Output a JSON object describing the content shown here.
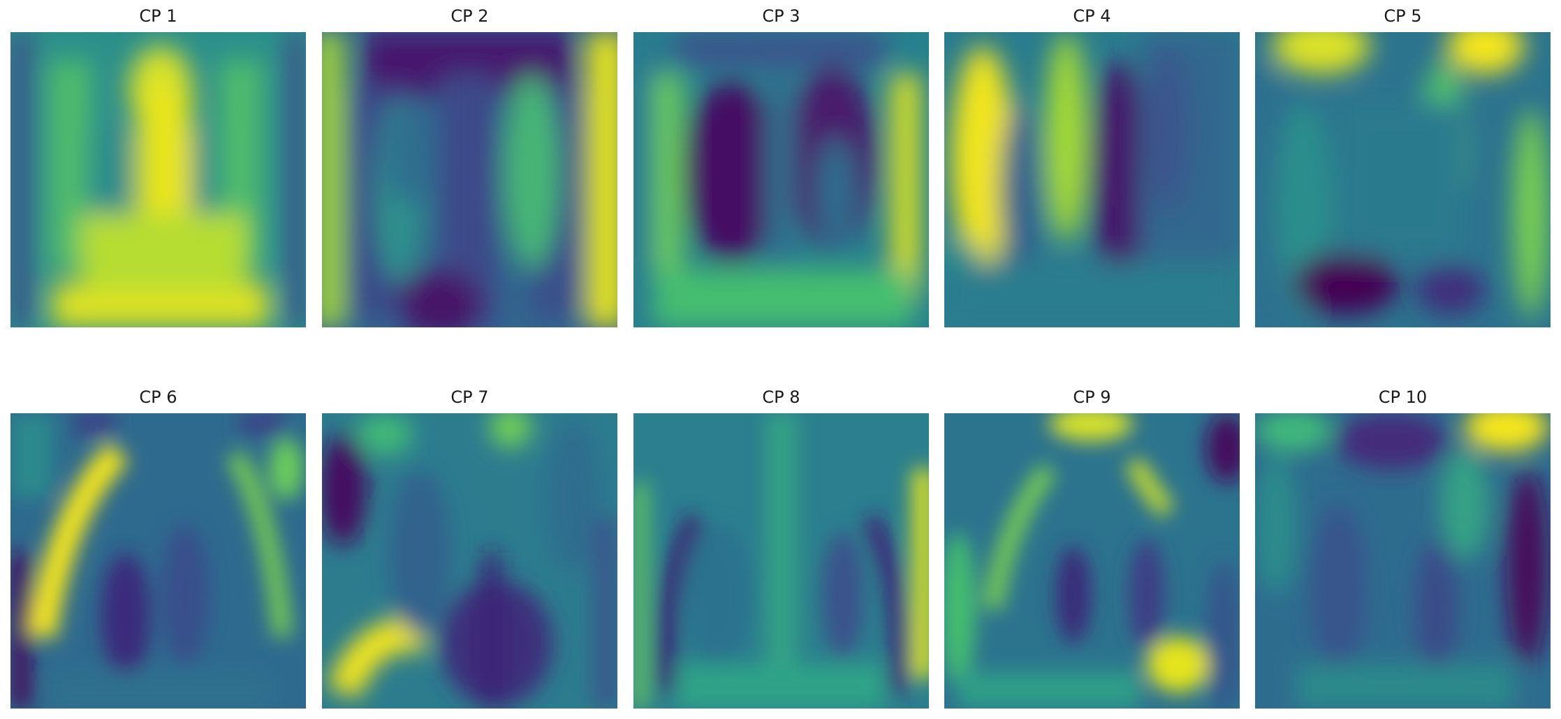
{
  "figure": {
    "colormap": "viridis",
    "colors": {
      "low": "#440154",
      "mid_low": "#3b528b",
      "mid": "#21918c",
      "mid_high": "#5ec962",
      "high": "#fde725"
    },
    "panels": [
      {
        "title": "CP 1",
        "pattern": "central-bright"
      },
      {
        "title": "CP 2",
        "pattern": "edges-bright"
      },
      {
        "title": "CP 3",
        "pattern": "lungs-dark"
      },
      {
        "title": "CP 4",
        "pattern": "left-bright-right-dark"
      },
      {
        "title": "CP 5",
        "pattern": "top-corners-bright"
      },
      {
        "title": "CP 6",
        "pattern": "left-arc-bright"
      },
      {
        "title": "CP 7",
        "pattern": "lower-left-blob"
      },
      {
        "title": "CP 8",
        "pattern": "midline-bright"
      },
      {
        "title": "CP 9",
        "pattern": "clavicle-arcs"
      },
      {
        "title": "CP 10",
        "pattern": "top-right-bright"
      }
    ]
  }
}
